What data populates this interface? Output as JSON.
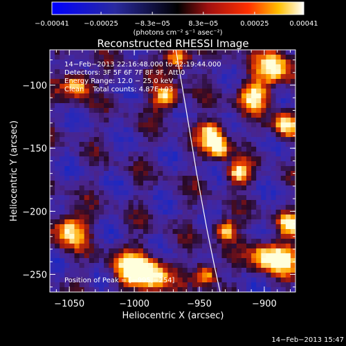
{
  "chart_data": {
    "type": "heatmap",
    "title": "Reconstructed RHESSI Image",
    "xlabel": "Heliocentric X (arcsec)",
    "ylabel": "Heliocentric Y (arcsec)",
    "xlim": [
      -1065,
      -876
    ],
    "ylim": [
      -264,
      -72
    ],
    "x_ticks": [
      -1050,
      -1000,
      -950,
      -900
    ],
    "y_ticks": [
      -100,
      -150,
      -200,
      -250
    ],
    "x_tick_labels": [
      "−1050",
      "−1000",
      "−950",
      "−900"
    ],
    "y_tick_labels": [
      "−100",
      "−150",
      "−200",
      "−250"
    ],
    "colorbar": {
      "min": -0.00041,
      "max": 0.00041,
      "tick_values": [
        -0.00041,
        -0.00025,
        -8.3e-05,
        8.3e-05,
        0.00025,
        0.00041
      ],
      "tick_labels": [
        "−0.00041",
        "−0.00025",
        "−8.3e−05",
        "8.3e−05",
        "0.00025",
        "0.00041"
      ],
      "units": "(photons cm⁻² s⁻¹ asec⁻²)"
    },
    "info_lines": [
      "14−Feb−2013 22:16:48.000 to 22:19:44.000",
      "Detectors: 3F 5F 6F 7F 8F 9F, Att 0",
      "Energy Range: 12.0 − 25.0 keV",
      "Clean    Total counts: 4.87E+03"
    ],
    "peak_label": "Position of Peak = [−995,−254]",
    "footer_date": "14−Feb−2013 15:47",
    "limb_curve": [
      [
        -968,
        -72
      ],
      [
        -960,
        -120
      ],
      [
        -952,
        -170
      ],
      [
        -944,
        -215
      ],
      [
        -938,
        -245
      ],
      [
        -934,
        -264
      ]
    ],
    "bright_sources": [
      [
        -1050,
        -215,
        9
      ],
      [
        -1044,
        -100,
        7
      ],
      [
        -1002,
        -245,
        10
      ],
      [
        -985,
        -252,
        9
      ],
      [
        -976,
        -110,
        7
      ],
      [
        -966,
        -78,
        7
      ],
      [
        -940,
        -138,
        7
      ],
      [
        -935,
        -150,
        6
      ],
      [
        -920,
        -170,
        6
      ],
      [
        -908,
        -108,
        8
      ],
      [
        -892,
        -85,
        10
      ],
      [
        -884,
        -132,
        7
      ],
      [
        -880,
        -210,
        6
      ],
      [
        -900,
        -235,
        8
      ],
      [
        -884,
        -238,
        8
      ],
      [
        -930,
        -215,
        6
      ],
      [
        -945,
        -250,
        6
      ]
    ],
    "colors": {
      "background": "#000000",
      "foreground": "#ffffff",
      "field": "#4a248a"
    }
  }
}
